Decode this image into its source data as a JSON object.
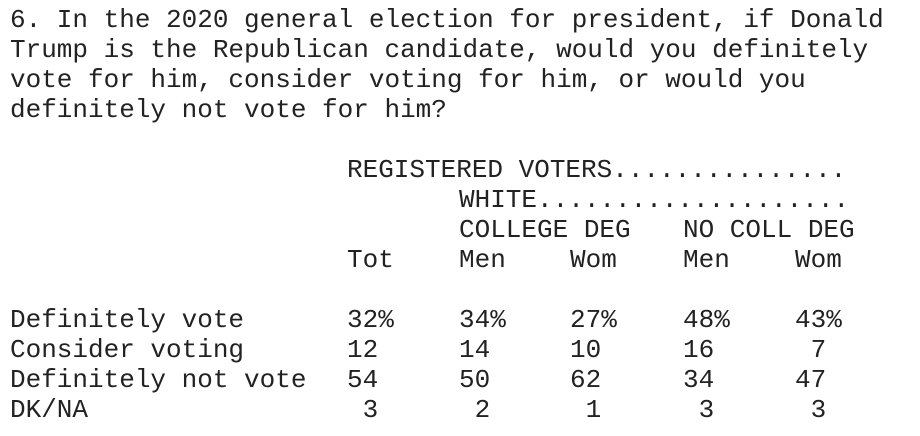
{
  "question": {
    "lines": [
      "6. In the 2020 general election for president, if Donald",
      "Trump is the Republican candidate, would you definitely",
      "vote for him, consider voting for him, or would you",
      "definitely not vote for him?"
    ]
  },
  "table": {
    "header": {
      "group": "REGISTERED VOTERS...............",
      "subgroup": "WHITE....................",
      "education": [
        "COLLEGE DEG",
        "NO COLL DEG"
      ],
      "columns": [
        "Tot",
        "Men",
        "Wom",
        "Men",
        "Wom"
      ]
    },
    "rows": [
      {
        "label": "Definitely vote",
        "cells": [
          "32%",
          "34%",
          "27%",
          "48%",
          "43%"
        ]
      },
      {
        "label": "Consider voting",
        "cells": [
          "12",
          "14",
          "10",
          "16",
          "7"
        ]
      },
      {
        "label": "Definitely not vote",
        "cells": [
          "54",
          "50",
          "62",
          "34",
          "47"
        ]
      },
      {
        "label": "DK/NA",
        "cells": [
          "3",
          "2",
          "1",
          "3",
          "3"
        ]
      }
    ]
  }
}
